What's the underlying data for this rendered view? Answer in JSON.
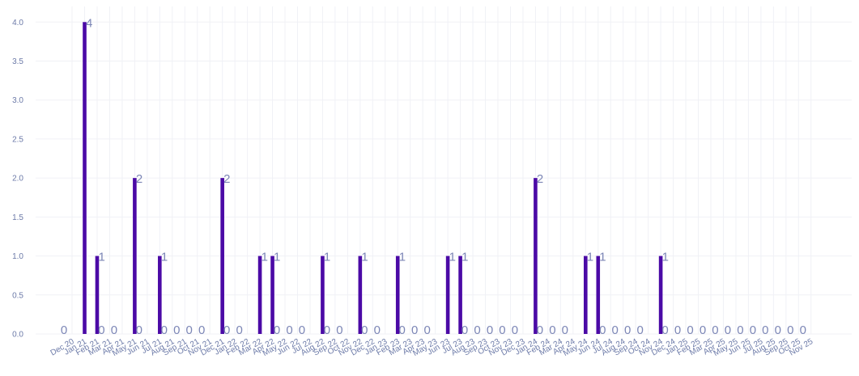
{
  "chart_data": {
    "type": "bar",
    "categories": [
      "Dec 20",
      "Jan 21",
      "Feb 21",
      "Mar 21",
      "Apr 21",
      "May 21",
      "Jun 21",
      "Jul 21",
      "Aug 21",
      "Sep 21",
      "Oct 21",
      "Nov 21",
      "Dec 21",
      "Jan 22",
      "Feb 22",
      "Mar 22",
      "Apr 22",
      "May 22",
      "Jun 22",
      "Jul 22",
      "Aug 22",
      "Sep 22",
      "Oct 22",
      "Nov 22",
      "Dec 22",
      "Jan 23",
      "Feb 23",
      "Mar 23",
      "Apr 23",
      "May 23",
      "Jun 23",
      "Jul 23",
      "Aug 23",
      "Sep 23",
      "Oct 23",
      "Nov 23",
      "Dec 23",
      "Jan 24",
      "Feb 24",
      "Mar 24",
      "Apr 24",
      "May 24",
      "Jun 24",
      "Jul 24",
      "Aug 24",
      "Sep 24",
      "Oct 24",
      "Nov 24",
      "Dec 24",
      "Jan 25",
      "Feb 25",
      "Mar 25",
      "Apr 25",
      "May 25",
      "Jun 25",
      "Jul 25",
      "Aug 25",
      "Sep 25",
      "Oct 25",
      "Nov 25"
    ],
    "values": [
      0,
      4,
      1,
      0,
      0,
      2,
      0,
      1,
      0,
      0,
      0,
      0,
      2,
      0,
      0,
      1,
      1,
      0,
      0,
      0,
      1,
      0,
      0,
      1,
      0,
      0,
      1,
      0,
      0,
      0,
      1,
      1,
      0,
      0,
      0,
      0,
      0,
      2,
      0,
      0,
      0,
      1,
      1,
      0,
      0,
      0,
      0,
      1,
      0,
      0,
      0,
      0,
      0,
      0,
      0,
      0,
      0,
      0,
      0,
      0
    ],
    "y_ticks": [
      "0.0",
      "0.5",
      "1.0",
      "1.5",
      "2.0",
      "2.5",
      "3.0",
      "3.5",
      "4.0"
    ],
    "ylim": [
      0,
      4.2
    ],
    "grid": true,
    "colors": {
      "bar": "#4b0aa6",
      "label": "#7c86b6",
      "tick": "#6c7aa8",
      "grid": "#f0f1f6"
    }
  }
}
